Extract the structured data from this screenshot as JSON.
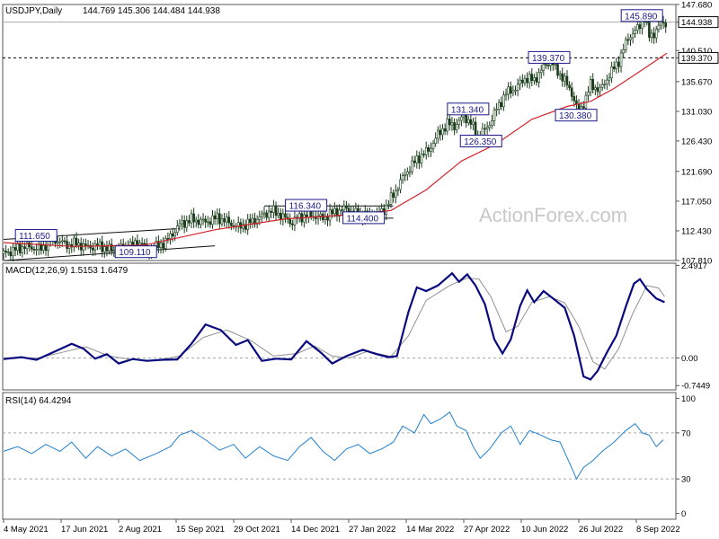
{
  "chart_data": [
    {
      "type": "candlestick",
      "symbol_label": "USDJPY,Daily",
      "ohlc_label": "144.769 145.306 144.484 144.938",
      "watermark": "ActionForex.com",
      "ylim": [
        107.81,
        147.68
      ],
      "y_ticks": [
        "147.680",
        "144.938",
        "140.510",
        "139.370",
        "135.670",
        "131.030",
        "126.430",
        "121.690",
        "117.050",
        "112.430",
        "107.810"
      ],
      "last_price": 144.938,
      "horizontal_line": 139.37,
      "x_labels": [
        "4 May 2021",
        "17 Jun 2021",
        "2 Aug 2021",
        "15 Sep 2021",
        "29 Oct 2021",
        "14 Dec 2021",
        "27 Jan 2022",
        "14 Mar 2022",
        "27 Apr 2022",
        "10 Jun 2022",
        "26 Jul 2022",
        "8 Sep 2022"
      ],
      "price_path": [
        [
          0,
          108.9
        ],
        [
          18,
          110.0
        ],
        [
          32,
          109.6
        ],
        [
          42,
          111.2
        ],
        [
          55,
          110.2
        ],
        [
          62,
          110.5
        ],
        [
          70,
          109.9
        ],
        [
          82,
          110.1
        ],
        [
          92,
          109.4
        ],
        [
          100,
          109.8
        ],
        [
          112,
          110.3
        ],
        [
          118,
          110.6
        ],
        [
          122,
          109.2
        ],
        [
          128,
          109.8
        ],
        [
          138,
          110.7
        ],
        [
          150,
          113.4
        ],
        [
          160,
          114.2
        ],
        [
          172,
          113.8
        ],
        [
          182,
          114.5
        ],
        [
          190,
          113.9
        ],
        [
          200,
          113.0
        ],
        [
          212,
          113.9
        ],
        [
          228,
          115.6
        ],
        [
          235,
          115.0
        ],
        [
          245,
          113.7
        ],
        [
          252,
          114.6
        ],
        [
          262,
          114.9
        ],
        [
          272,
          114.4
        ],
        [
          282,
          115.4
        ],
        [
          292,
          115.9
        ],
        [
          300,
          115.1
        ],
        [
          310,
          114.8
        ],
        [
          318,
          115.0
        ],
        [
          325,
          115.9
        ],
        [
          333,
          118.4
        ],
        [
          342,
          121.3
        ],
        [
          352,
          123.6
        ],
        [
          362,
          125.0
        ],
        [
          370,
          127.4
        ],
        [
          378,
          129.1
        ],
        [
          385,
          128.8
        ],
        [
          392,
          130.3
        ],
        [
          398,
          129.2
        ],
        [
          404,
          127.1
        ],
        [
          412,
          128.5
        ],
        [
          420,
          131.4
        ],
        [
          428,
          133.9
        ],
        [
          436,
          134.6
        ],
        [
          444,
          136.2
        ],
        [
          452,
          135.9
        ],
        [
          460,
          137.9
        ],
        [
          466,
          139.1
        ],
        [
          470,
          137.6
        ],
        [
          476,
          136.4
        ],
        [
          484,
          133.9
        ],
        [
          490,
          130.7
        ],
        [
          496,
          133.2
        ],
        [
          500,
          135.2
        ],
        [
          508,
          134.3
        ],
        [
          516,
          136.7
        ],
        [
          524,
          138.9
        ],
        [
          532,
          142.5
        ],
        [
          540,
          143.9
        ],
        [
          546,
          145.6
        ],
        [
          550,
          142.7
        ],
        [
          554,
          143.2
        ],
        [
          560,
          144.7
        ],
        [
          565,
          144.9
        ]
      ],
      "series": [
        {
          "name": "",
          "color": "#d4232a",
          "points": [
            [
              0,
              110.6
            ],
            [
              60,
              110.0
            ],
            [
              120,
              110.2
            ],
            [
              180,
              112.6
            ],
            [
              240,
              114.3
            ],
            [
              300,
              115.0
            ],
            [
              330,
              115.6
            ],
            [
              360,
              118.8
            ],
            [
              390,
              123.3
            ],
            [
              420,
              126.0
            ],
            [
              450,
              129.8
            ],
            [
              480,
              131.8
            ],
            [
              500,
              132.6
            ],
            [
              520,
              134.6
            ],
            [
              540,
              137.0
            ],
            [
              565,
              140.1
            ]
          ]
        }
      ],
      "annotations": [
        {
          "label": "111.650",
          "t": 30,
          "price": 111.65
        },
        {
          "label": "109.110",
          "t": 115,
          "price": 109.11
        },
        {
          "label": "116.340",
          "t": 260,
          "price": 116.34
        },
        {
          "label": "114.400",
          "t": 309,
          "price": 114.4
        },
        {
          "label": "131.340",
          "t": 398,
          "price": 131.34
        },
        {
          "label": "126.350",
          "t": 409,
          "price": 126.35
        },
        {
          "label": "139.370",
          "t": 467,
          "price": 139.37
        },
        {
          "label": "130.380",
          "t": 490,
          "price": 130.38
        },
        {
          "label": "145.890",
          "t": 546,
          "price": 145.89
        }
      ],
      "trendlines": [
        {
          "from": [
            0,
            111.1
          ],
          "to": [
            150,
            112.8
          ]
        },
        {
          "from": [
            0,
            107.8
          ],
          "to": [
            180,
            110.1
          ]
        },
        {
          "from": [
            222,
            116.3
          ],
          "to": [
            332,
            116.3
          ]
        },
        {
          "from": [
            290,
            114.4
          ],
          "to": [
            332,
            114.4
          ]
        }
      ]
    },
    {
      "type": "line",
      "label": "MACD(12,26,9) 1.5153 1.6479",
      "ylim": [
        -0.7449,
        2.4917
      ],
      "y_ticks": [
        "2.4917",
        "0.00",
        "-0.7449"
      ],
      "series": [
        {
          "name": "",
          "color": "#0a0a80",
          "points": [
            [
              0,
              -0.03
            ],
            [
              15,
              0.02
            ],
            [
              28,
              -0.05
            ],
            [
              42,
              0.15
            ],
            [
              58,
              0.38
            ],
            [
              68,
              0.25
            ],
            [
              78,
              -0.02
            ],
            [
              88,
              0.1
            ],
            [
              98,
              -0.15
            ],
            [
              110,
              -0.03
            ],
            [
              122,
              -0.08
            ],
            [
              135,
              -0.05
            ],
            [
              148,
              -0.04
            ],
            [
              160,
              0.38
            ],
            [
              172,
              0.9
            ],
            [
              185,
              0.75
            ],
            [
              198,
              0.35
            ],
            [
              208,
              0.48
            ],
            [
              220,
              -0.08
            ],
            [
              232,
              -0.02
            ],
            [
              245,
              -0.04
            ],
            [
              258,
              0.45
            ],
            [
              270,
              0.15
            ],
            [
              280,
              -0.15
            ],
            [
              292,
              0.05
            ],
            [
              306,
              0.22
            ],
            [
              318,
              0.1
            ],
            [
              328,
              0.02
            ],
            [
              335,
              0.05
            ],
            [
              345,
              1.25
            ],
            [
              352,
              1.9
            ],
            [
              360,
              1.8
            ],
            [
              370,
              1.95
            ],
            [
              382,
              2.28
            ],
            [
              388,
              2.05
            ],
            [
              395,
              2.25
            ],
            [
              402,
              1.95
            ],
            [
              410,
              1.45
            ],
            [
              418,
              0.5
            ],
            [
              425,
              0.12
            ],
            [
              432,
              0.5
            ],
            [
              440,
              1.4
            ],
            [
              446,
              1.82
            ],
            [
              452,
              1.5
            ],
            [
              460,
              1.8
            ],
            [
              470,
              1.55
            ],
            [
              478,
              1.35
            ],
            [
              486,
              0.6
            ],
            [
              494,
              -0.5
            ],
            [
              500,
              -0.58
            ],
            [
              506,
              -0.35
            ],
            [
              514,
              0.15
            ],
            [
              522,
              0.6
            ],
            [
              530,
              1.38
            ],
            [
              537,
              2.0
            ],
            [
              542,
              2.12
            ],
            [
              548,
              1.85
            ],
            [
              556,
              1.6
            ],
            [
              563,
              1.5
            ]
          ]
        },
        {
          "name": "",
          "color": "#909090",
          "points": [
            [
              0,
              0.0
            ],
            [
              30,
              0.0
            ],
            [
              50,
              0.15
            ],
            [
              70,
              0.3
            ],
            [
              90,
              0.05
            ],
            [
              110,
              -0.05
            ],
            [
              130,
              -0.07
            ],
            [
              150,
              0.05
            ],
            [
              170,
              0.55
            ],
            [
              190,
              0.75
            ],
            [
              210,
              0.48
            ],
            [
              230,
              0.05
            ],
            [
              250,
              0.12
            ],
            [
              265,
              0.32
            ],
            [
              280,
              0.05
            ],
            [
              295,
              0.0
            ],
            [
              310,
              0.18
            ],
            [
              330,
              0.04
            ],
            [
              345,
              0.6
            ],
            [
              360,
              1.55
            ],
            [
              380,
              1.95
            ],
            [
              395,
              2.15
            ],
            [
              405,
              2.12
            ],
            [
              415,
              1.65
            ],
            [
              428,
              0.7
            ],
            [
              438,
              0.85
            ],
            [
              450,
              1.5
            ],
            [
              465,
              1.65
            ],
            [
              478,
              1.48
            ],
            [
              490,
              0.85
            ],
            [
              502,
              -0.1
            ],
            [
              512,
              -0.3
            ],
            [
              524,
              0.25
            ],
            [
              536,
              1.2
            ],
            [
              548,
              1.95
            ],
            [
              558,
              1.88
            ],
            [
              563,
              1.65
            ]
          ]
        }
      ]
    },
    {
      "type": "line",
      "label": "RSI(14) 64.4294",
      "ylim": [
        0,
        100
      ],
      "y_ticks": [
        "100",
        "70",
        "30",
        "0"
      ],
      "levels": [
        70,
        30
      ],
      "series": [
        {
          "name": "",
          "color": "#2080d0",
          "points": [
            [
              0,
              54
            ],
            [
              12,
              58
            ],
            [
              24,
              52
            ],
            [
              36,
              60
            ],
            [
              48,
              54
            ],
            [
              58,
              62
            ],
            [
              70,
              48
            ],
            [
              80,
              58
            ],
            [
              92,
              50
            ],
            [
              104,
              56
            ],
            [
              116,
              46
            ],
            [
              130,
              52
            ],
            [
              142,
              58
            ],
            [
              150,
              68
            ],
            [
              160,
              72
            ],
            [
              172,
              64
            ],
            [
              184,
              55
            ],
            [
              196,
              60
            ],
            [
              206,
              48
            ],
            [
              218,
              58
            ],
            [
              230,
              50
            ],
            [
              242,
              46
            ],
            [
              252,
              58
            ],
            [
              262,
              66
            ],
            [
              272,
              54
            ],
            [
              282,
              46
            ],
            [
              292,
              56
            ],
            [
              302,
              60
            ],
            [
              312,
              52
            ],
            [
              322,
              56
            ],
            [
              332,
              62
            ],
            [
              340,
              76
            ],
            [
              350,
              70
            ],
            [
              358,
              86
            ],
            [
              364,
              78
            ],
            [
              372,
              82
            ],
            [
              380,
              88
            ],
            [
              386,
              76
            ],
            [
              394,
              72
            ],
            [
              400,
              58
            ],
            [
              406,
              48
            ],
            [
              414,
              56
            ],
            [
              424,
              70
            ],
            [
              432,
              76
            ],
            [
              440,
              60
            ],
            [
              448,
              72
            ],
            [
              458,
              68
            ],
            [
              466,
              64
            ],
            [
              474,
              62
            ],
            [
              482,
              44
            ],
            [
              488,
              30
            ],
            [
              494,
              40
            ],
            [
              502,
              46
            ],
            [
              510,
              54
            ],
            [
              520,
              62
            ],
            [
              530,
              72
            ],
            [
              538,
              78
            ],
            [
              544,
              70
            ],
            [
              550,
              68
            ],
            [
              556,
              58
            ],
            [
              562,
              64
            ]
          ]
        }
      ]
    }
  ]
}
